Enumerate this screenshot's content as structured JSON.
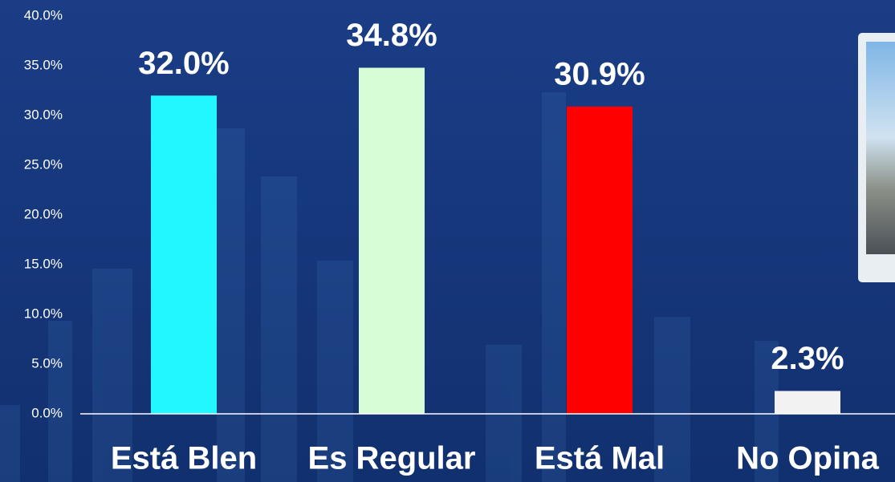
{
  "chart_data": {
    "type": "bar",
    "categories": [
      "Está Blen",
      "Es Regular",
      "Está Mal",
      "No Opina"
    ],
    "values": [
      32.0,
      34.8,
      30.9,
      2.3
    ],
    "value_labels": [
      "32.0%",
      "34.8%",
      "30.9%",
      "2.3%"
    ],
    "colors": [
      "#22f7ff",
      "#d6fdd6",
      "#ff0000",
      "#f2f2f2"
    ],
    "ylim": [
      0,
      40
    ],
    "yticks": [
      {
        "value": 0,
        "label": "0.0%"
      },
      {
        "value": 5,
        "label": "5.0%"
      },
      {
        "value": 10,
        "label": "10.0%"
      },
      {
        "value": 15,
        "label": "15.0%"
      },
      {
        "value": 20,
        "label": "20.0%"
      },
      {
        "value": 25,
        "label": "25.0%"
      },
      {
        "value": 30,
        "label": "30.0%"
      },
      {
        "value": 35,
        "label": "35.0%"
      },
      {
        "value": 40,
        "label": "40.0%"
      }
    ],
    "grid": false
  }
}
